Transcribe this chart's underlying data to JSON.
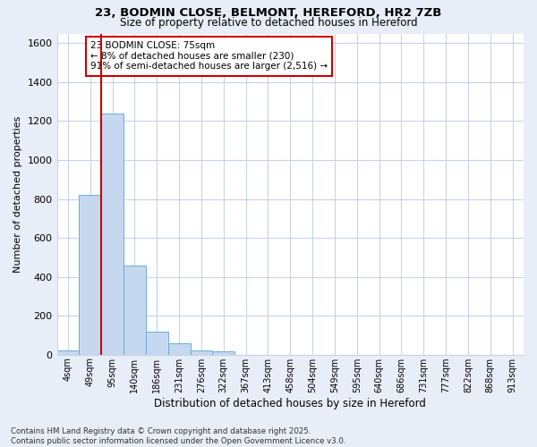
{
  "title1": "23, BODMIN CLOSE, BELMONT, HEREFORD, HR2 7ZB",
  "title2": "Size of property relative to detached houses in Hereford",
  "xlabel": "Distribution of detached houses by size in Hereford",
  "ylabel": "Number of detached properties",
  "categories": [
    "4sqm",
    "49sqm",
    "95sqm",
    "140sqm",
    "186sqm",
    "231sqm",
    "276sqm",
    "322sqm",
    "367sqm",
    "413sqm",
    "458sqm",
    "504sqm",
    "549sqm",
    "595sqm",
    "640sqm",
    "686sqm",
    "731sqm",
    "777sqm",
    "822sqm",
    "868sqm",
    "913sqm"
  ],
  "values": [
    20,
    820,
    1240,
    460,
    120,
    60,
    20,
    15,
    0,
    0,
    0,
    0,
    0,
    0,
    0,
    0,
    0,
    0,
    0,
    0,
    0
  ],
  "bar_color": "#c5d8ef",
  "bar_edge_color": "#6baed6",
  "vline_x": 1.5,
  "vline_color": "#cc0000",
  "annotation_text": "23 BODMIN CLOSE: 75sqm\n← 8% of detached houses are smaller (230)\n91% of semi-detached houses are larger (2,516) →",
  "annotation_box_facecolor": "#ffffff",
  "annotation_box_edgecolor": "#cc0000",
  "ylim": [
    0,
    1650
  ],
  "yticks": [
    0,
    200,
    400,
    600,
    800,
    1000,
    1200,
    1400,
    1600
  ],
  "footer": "Contains HM Land Registry data © Crown copyright and database right 2025.\nContains public sector information licensed under the Open Government Licence v3.0.",
  "fig_bg_color": "#e8eef7",
  "plot_bg_color": "#ffffff",
  "grid_color": "#c8d4e8"
}
